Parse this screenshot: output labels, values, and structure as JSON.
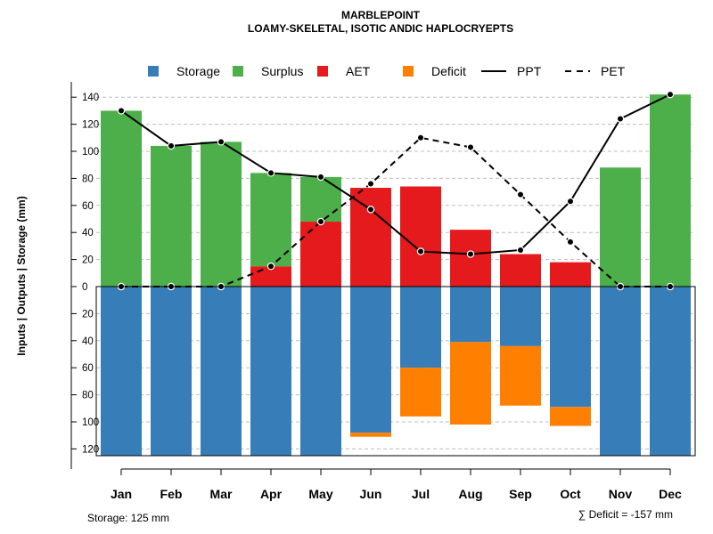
{
  "chart_data": {
    "type": "bar",
    "title": "MARBLEPOINT",
    "subtitle": "LOAMY-SKELETAL, ISOTIC ANDIC HAPLOCRYEPTS",
    "ylabel": "Inputs | Outputs | Storage    (mm)",
    "xlabel": "",
    "ylim": [
      -125,
      145
    ],
    "y_ticks": [
      140,
      120,
      100,
      80,
      60,
      40,
      20,
      0,
      -20,
      -40,
      -60,
      -80,
      -100,
      -120
    ],
    "y_tick_labels": [
      "140",
      "120",
      "100",
      "80",
      "60",
      "40",
      "20",
      "0",
      "20",
      "40",
      "60",
      "80",
      "100",
      "120"
    ],
    "categories": [
      "Jan",
      "Feb",
      "Mar",
      "Apr",
      "May",
      "Jun",
      "Jul",
      "Aug",
      "Sep",
      "Oct",
      "Nov",
      "Dec"
    ],
    "legend_position": "top",
    "grid": "horizontal dashed",
    "series": [
      {
        "name": "Storage",
        "kind": "bar-down",
        "color": "#377EB8",
        "values": [
          125,
          125,
          125,
          125,
          125,
          108,
          60,
          41,
          44,
          89,
          125,
          125
        ]
      },
      {
        "name": "Surplus",
        "kind": "bar-up-stacked",
        "color": "#4DAF4A",
        "values": [
          130,
          104,
          107,
          69,
          33,
          0,
          0,
          0,
          0,
          0,
          88,
          142
        ]
      },
      {
        "name": "AET",
        "kind": "bar-up",
        "color": "#E41A1C",
        "values": [
          0,
          0,
          0,
          15,
          48,
          73,
          74,
          42,
          24,
          18,
          0,
          0
        ]
      },
      {
        "name": "Deficit",
        "kind": "bar-down-stacked",
        "color": "#FF7F00",
        "values": [
          0,
          0,
          0,
          0,
          0,
          3,
          36,
          61,
          44,
          14,
          0,
          0
        ]
      },
      {
        "name": "PPT",
        "kind": "line-solid",
        "color": "#000000",
        "values": [
          130,
          104,
          107,
          84,
          81,
          57,
          26,
          24,
          27,
          63,
          124,
          142
        ]
      },
      {
        "name": "PET",
        "kind": "line-dashed",
        "color": "#000000",
        "values": [
          0,
          0,
          0,
          15,
          48,
          76,
          110,
          103,
          68,
          33,
          0,
          0
        ]
      }
    ],
    "footer_left": "Storage: 125 mm",
    "footer_right": "∑ Deficit = -157 mm"
  }
}
